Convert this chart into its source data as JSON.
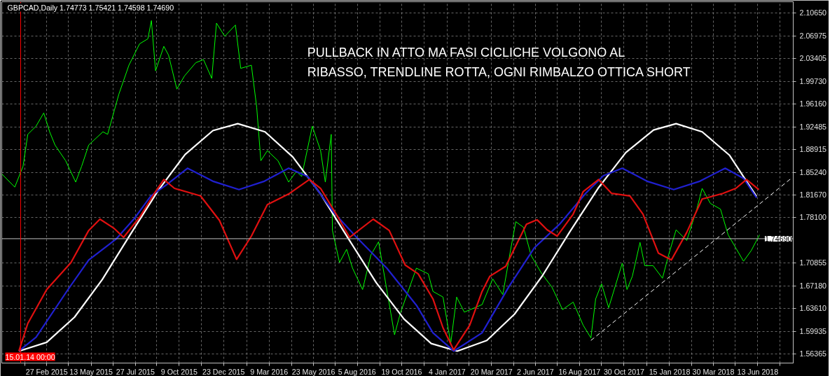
{
  "chart_data": {
    "type": "line",
    "title": "GBPCAD,Daily  1.74773 1.75421 1.74598 1.74690",
    "annotations": [
      "PULLBACK IN ATTO MA FASI CICLICHE VOLGONO AL\nRIBASSO, TRENDLINE ROTTA, OGNI RIMBALZO OTTICA SHORT"
    ],
    "xlim": [
      "2014-12-13",
      "2018-08-12"
    ],
    "xticks": [
      {
        "value": "2015-01-21",
        "label": null
      },
      {
        "value": "2015-02-27",
        "label": "27 Feb 2015"
      },
      {
        "value": "2015-04-05",
        "label": null
      },
      {
        "value": "2015-05-13",
        "label": "13 May 2015"
      },
      {
        "value": "2015-06-19",
        "label": null
      },
      {
        "value": "2015-07-27",
        "label": "27 Jul 2015"
      },
      {
        "value": "2015-09-01",
        "label": null
      },
      {
        "value": "2015-10-09",
        "label": "9 Oct 2015"
      },
      {
        "value": "2015-11-16",
        "label": null
      },
      {
        "value": "2015-12-23",
        "label": "23 Dec 2015"
      },
      {
        "value": "2016-01-31",
        "label": null
      },
      {
        "value": "2016-03-09",
        "label": "9 Mar 2016"
      },
      {
        "value": "2016-04-16",
        "label": null
      },
      {
        "value": "2016-05-23",
        "label": "23 May 2016"
      },
      {
        "value": "2016-06-29",
        "label": null
      },
      {
        "value": "2016-08-05",
        "label": "5 Aug 2016"
      },
      {
        "value": "2016-09-12",
        "label": null
      },
      {
        "value": "2016-10-19",
        "label": "19 Oct 2016"
      },
      {
        "value": "2016-11-26",
        "label": null
      },
      {
        "value": "2017-01-04",
        "label": "4 Jan 2017"
      },
      {
        "value": "2017-02-10",
        "label": null
      },
      {
        "value": "2017-03-20",
        "label": "20 Mar 2017"
      },
      {
        "value": "2017-04-26",
        "label": null
      },
      {
        "value": "2017-06-02",
        "label": "2 Jun 2017"
      },
      {
        "value": "2017-07-09",
        "label": null
      },
      {
        "value": "2017-08-16",
        "label": "16 Aug 2017"
      },
      {
        "value": "2017-09-22",
        "label": null
      },
      {
        "value": "2017-10-30",
        "label": "30 Oct 2017"
      },
      {
        "value": "2017-12-07",
        "label": null
      },
      {
        "value": "2018-01-15",
        "label": "15 Jan 2018"
      },
      {
        "value": "2018-02-21",
        "label": null
      },
      {
        "value": "2018-03-30",
        "label": "30 Mar 2018"
      },
      {
        "value": "2018-05-06",
        "label": null
      },
      {
        "value": "2018-06-13",
        "label": "13 Jun 2018"
      },
      {
        "value": "2018-07-20",
        "label": null
      }
    ],
    "ylim": [
      1.549,
      2.124
    ],
    "yticks": [
      {
        "value": 1.56365,
        "label": "1.56365"
      },
      {
        "value": 1.59935,
        "label": "1.59935"
      },
      {
        "value": 1.6361,
        "label": "1.63610"
      },
      {
        "value": 1.6718,
        "label": "1.67180"
      },
      {
        "value": 1.70855,
        "label": "1.70855"
      },
      {
        "value": 1.781,
        "label": "1.78100"
      },
      {
        "value": 1.8167,
        "label": "1.81670"
      },
      {
        "value": 1.8524,
        "label": "1.85240"
      },
      {
        "value": 1.88915,
        "label": "1.88915"
      },
      {
        "value": 1.92485,
        "label": "1.92485"
      },
      {
        "value": 1.9616,
        "label": "1.96160"
      },
      {
        "value": 1.9973,
        "label": "1.99730"
      },
      {
        "value": 2.03405,
        "label": "2.03405"
      },
      {
        "value": 2.06975,
        "label": "2.06975"
      },
      {
        "value": 2.1065,
        "label": "2.10650"
      }
    ],
    "grid": true,
    "ref_lines": [
      {
        "axis": "y",
        "value": 1.7469,
        "label": "1.74690",
        "color": "#c0c0c0"
      },
      {
        "axis": "x",
        "value": "2015-01-14",
        "label": "15.01.14 00:00",
        "color": "#ff0000"
      }
    ],
    "series": [
      {
        "color": "#00ff00",
        "x": [
          "2014-12-13",
          "2015-01-04",
          "2015-01-18",
          "2015-01-26",
          "2015-02-09",
          "2015-02-22",
          "2015-03-04",
          "2015-03-13",
          "2015-03-31",
          "2015-04-17",
          "2015-04-27",
          "2015-05-09",
          "2015-06-02",
          "2015-06-10",
          "2015-06-29",
          "2015-07-16",
          "2015-08-03",
          "2015-08-17",
          "2015-08-23",
          "2015-08-30",
          "2015-09-13",
          "2015-09-21",
          "2015-10-05",
          "2015-10-18",
          "2015-11-06",
          "2015-11-19",
          "2015-12-03",
          "2015-12-11",
          "2015-12-25",
          "2016-01-12",
          "2016-01-21",
          "2016-02-08",
          "2016-02-17",
          "2016-02-24",
          "2016-03-06",
          "2016-03-24",
          "2016-04-11",
          "2016-04-24",
          "2016-05-03",
          "2016-05-21",
          "2016-06-04",
          "2016-06-12",
          "2016-06-22",
          "2016-06-24",
          "2016-07-06",
          "2016-07-18",
          "2016-07-28",
          "2016-08-14",
          "2016-08-28",
          "2016-09-10",
          "2016-10-07",
          "2016-10-17",
          "2016-11-13",
          "2016-12-03",
          "2016-12-11",
          "2016-12-28",
          "2017-01-10",
          "2017-01-20",
          "2017-02-02",
          "2017-03-04",
          "2017-03-22",
          "2017-04-08",
          "2017-04-21",
          "2017-04-30",
          "2017-05-13",
          "2017-05-26",
          "2017-06-13",
          "2017-06-30",
          "2017-07-18",
          "2017-08-05",
          "2017-08-22",
          "2017-09-04",
          "2017-09-12",
          "2017-09-22",
          "2017-10-04",
          "2017-10-27",
          "2017-11-04",
          "2017-11-13",
          "2017-11-26",
          "2017-12-04",
          "2017-12-18",
          "2018-01-03",
          "2018-01-13",
          "2018-01-26",
          "2018-02-13",
          "2018-03-02",
          "2018-03-11",
          "2018-03-25",
          "2018-04-11",
          "2018-04-24",
          "2018-05-07",
          "2018-05-20",
          "2018-06-02",
          "2018-06-16"
        ],
        "values": [
          1.85,
          1.829,
          1.862,
          1.913,
          1.926,
          1.947,
          1.917,
          1.896,
          1.871,
          1.837,
          1.862,
          1.896,
          1.917,
          1.913,
          1.977,
          2.023,
          2.057,
          2.065,
          2.094,
          2.014,
          2.053,
          2.039,
          1.985,
          2.006,
          2.027,
          2.032,
          2.002,
          2.09,
          2.069,
          2.087,
          2.018,
          2.023,
          1.956,
          1.871,
          1.887,
          1.871,
          1.837,
          1.854,
          1.846,
          1.926,
          1.887,
          1.837,
          1.913,
          1.76,
          1.709,
          1.73,
          1.7,
          1.666,
          1.721,
          1.742,
          1.594,
          1.629,
          1.7,
          1.691,
          1.663,
          1.654,
          1.58,
          1.654,
          1.63,
          1.642,
          1.683,
          1.658,
          1.728,
          1.774,
          1.765,
          1.72,
          1.691,
          1.67,
          1.634,
          1.646,
          1.609,
          1.589,
          1.651,
          1.675,
          1.637,
          1.708,
          1.666,
          1.687,
          1.741,
          1.704,
          1.704,
          1.684,
          1.72,
          1.761,
          1.744,
          1.794,
          1.827,
          1.803,
          1.794,
          1.753,
          1.732,
          1.711,
          1.728,
          1.753
        ]
      },
      {
        "color": "#ffffff",
        "x": [
          "2015-01-11",
          "2015-02-27",
          "2015-04-15",
          "2015-06-01",
          "2015-07-18",
          "2015-09-03",
          "2015-10-19",
          "2015-12-05",
          "2016-01-16",
          "2016-03-02",
          "2016-04-18",
          "2016-06-04",
          "2016-07-21",
          "2016-09-06",
          "2016-10-23",
          "2016-12-08",
          "2017-01-21",
          "2017-03-12",
          "2017-04-28",
          "2017-06-14",
          "2017-07-31",
          "2017-09-16",
          "2017-11-02",
          "2017-12-19",
          "2018-01-26",
          "2018-03-11",
          "2018-04-26",
          "2018-06-11"
        ],
        "values": [
          1.568,
          1.582,
          1.622,
          1.682,
          1.753,
          1.823,
          1.881,
          1.919,
          1.93,
          1.917,
          1.877,
          1.818,
          1.747,
          1.677,
          1.619,
          1.58,
          1.568,
          1.585,
          1.627,
          1.688,
          1.759,
          1.827,
          1.884,
          1.92,
          1.93,
          1.917,
          1.88,
          1.814
        ]
      },
      {
        "color": "#2020d0",
        "x": [
          "2015-01-11",
          "2015-02-09",
          "2015-04-04",
          "2015-05-09",
          "2015-06-24",
          "2015-07-26",
          "2015-08-22",
          "2015-09-18",
          "2015-10-23",
          "2015-12-06",
          "2016-01-18",
          "2016-02-29",
          "2016-04-11",
          "2016-05-13",
          "2016-06-26",
          "2016-08-02",
          "2016-09-24",
          "2016-11-13",
          "2016-12-11",
          "2017-01-15",
          "2017-03-04",
          "2017-04-18",
          "2017-05-31",
          "2017-07-13",
          "2017-08-26",
          "2017-09-25",
          "2017-10-27",
          "2017-12-09",
          "2018-01-22",
          "2018-03-06",
          "2018-04-19",
          "2018-05-20",
          "2018-06-11"
        ],
        "values": [
          1.568,
          1.59,
          1.666,
          1.713,
          1.746,
          1.78,
          1.815,
          1.833,
          1.859,
          1.838,
          1.825,
          1.838,
          1.859,
          1.846,
          1.789,
          1.751,
          1.7,
          1.641,
          1.597,
          1.568,
          1.597,
          1.67,
          1.732,
          1.77,
          1.819,
          1.847,
          1.859,
          1.838,
          1.825,
          1.838,
          1.859,
          1.843,
          1.812
        ]
      },
      {
        "color": "#e01010",
        "x": [
          "2015-01-11",
          "2015-01-26",
          "2015-02-27",
          "2015-04-09",
          "2015-05-09",
          "2015-05-28",
          "2015-06-20",
          "2015-07-07",
          "2015-08-03",
          "2015-08-30",
          "2015-09-13",
          "2015-10-01",
          "2015-11-14",
          "2015-12-16",
          "2016-01-14",
          "2016-02-08",
          "2016-03-06",
          "2016-04-11",
          "2016-05-16",
          "2016-06-04",
          "2016-07-01",
          "2016-07-23",
          "2016-09-01",
          "2016-09-28",
          "2016-10-25",
          "2016-11-16",
          "2016-12-11",
          "2016-12-28",
          "2017-01-15",
          "2017-02-11",
          "2017-03-04",
          "2017-03-17",
          "2017-04-13",
          "2017-05-18",
          "2017-06-05",
          "2017-06-22",
          "2017-07-09",
          "2017-08-05",
          "2017-08-22",
          "2017-09-17",
          "2017-10-09",
          "2017-11-09",
          "2017-12-01",
          "2017-12-27",
          "2018-01-18",
          "2018-02-13",
          "2018-03-11",
          "2018-04-15",
          "2018-05-07",
          "2018-05-25",
          "2018-06-15"
        ],
        "values": [
          1.568,
          1.612,
          1.666,
          1.709,
          1.76,
          1.778,
          1.764,
          1.749,
          1.781,
          1.822,
          1.841,
          1.827,
          1.815,
          1.776,
          1.714,
          1.751,
          1.801,
          1.818,
          1.841,
          1.827,
          1.785,
          1.749,
          1.778,
          1.76,
          1.705,
          1.691,
          1.651,
          1.605,
          1.57,
          1.609,
          1.663,
          1.687,
          1.703,
          1.77,
          1.777,
          1.761,
          1.751,
          1.786,
          1.822,
          1.841,
          1.819,
          1.815,
          1.786,
          1.724,
          1.713,
          1.757,
          1.81,
          1.819,
          1.827,
          1.841,
          1.825
        ]
      },
      {
        "color": "#ffffff",
        "line_style": "dashed",
        "x": [
          "2017-09-04",
          "2018-08-10"
        ],
        "values": [
          1.585,
          1.844
        ]
      }
    ]
  }
}
